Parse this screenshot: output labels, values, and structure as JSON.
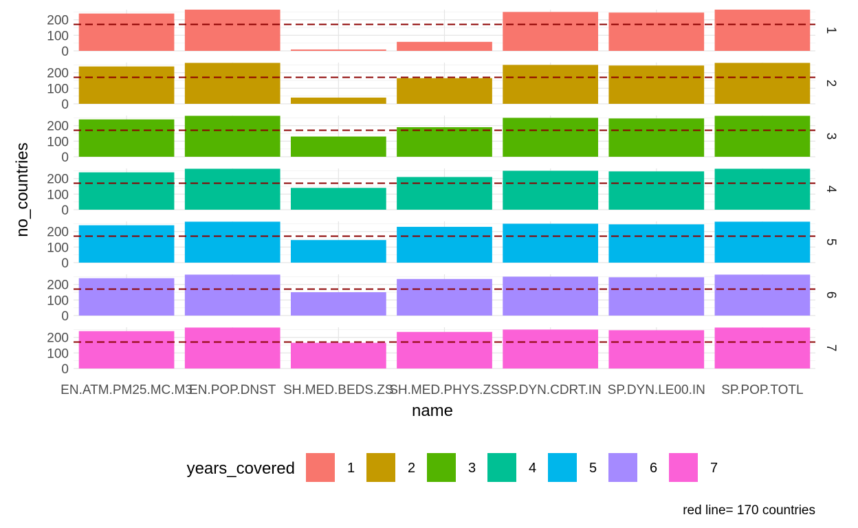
{
  "chart_data": {
    "type": "bar",
    "facet_by": "years_covered",
    "xlabel": "name",
    "ylabel": "no_countries",
    "ylim": [
      0,
      265
    ],
    "yticks": [
      0,
      100,
      200
    ],
    "categories": [
      "EN.ATM.PM25.MC.M3",
      "EN.POP.DNST",
      "SH.MED.BEDS.ZS",
      "SH.MED.PHYS.ZS",
      "SP.DYN.CDRT.IN",
      "SP.DYN.LE00.IN",
      "SP.POP.TOTL"
    ],
    "category_labels": [
      "EN.ATM.PM25.MC.M3",
      "EN.POP.DNST",
      "SH.MED.BEDS.ZS",
      "SH.MED.PHYS.ZS",
      "SP.DYN.CDRT.IN",
      "SP.DYN.LE00.IN",
      "SP.POP.TOTL"
    ],
    "reference_line": {
      "value": 170,
      "color": "#8B0000",
      "style": "dashed"
    },
    "caption": "red line= 170 countries",
    "legend": {
      "title": "years_covered",
      "position": "bottom"
    },
    "series": [
      {
        "name": "1",
        "color": "#F8766D",
        "values": [
          240,
          265,
          9,
          58,
          250,
          246,
          265
        ]
      },
      {
        "name": "2",
        "color": "#C49A00",
        "values": [
          240,
          263,
          40,
          165,
          250,
          246,
          263
        ]
      },
      {
        "name": "3",
        "color": "#53B400",
        "values": [
          240,
          263,
          130,
          190,
          250,
          246,
          263
        ]
      },
      {
        "name": "4",
        "color": "#00C094",
        "values": [
          240,
          263,
          140,
          210,
          250,
          246,
          263
        ]
      },
      {
        "name": "5",
        "color": "#00B6EB",
        "values": [
          240,
          263,
          145,
          230,
          250,
          246,
          263
        ]
      },
      {
        "name": "6",
        "color": "#A58AFF",
        "values": [
          240,
          263,
          150,
          235,
          250,
          246,
          263
        ]
      },
      {
        "name": "7",
        "color": "#FB61D7",
        "values": [
          240,
          263,
          165,
          235,
          250,
          246,
          263
        ]
      }
    ]
  }
}
